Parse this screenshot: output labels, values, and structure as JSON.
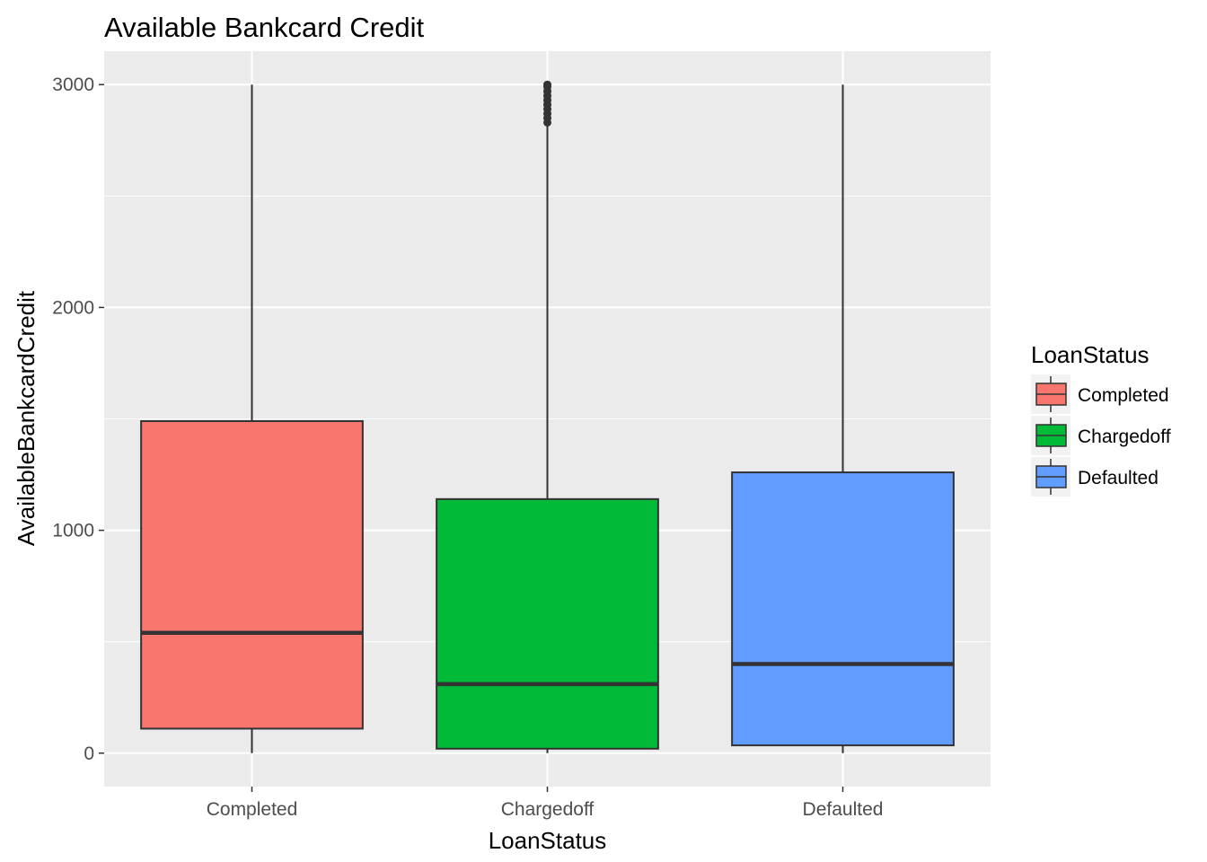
{
  "chart_data": {
    "type": "box",
    "title": "Available Bankcard Credit",
    "xlabel": "LoanStatus",
    "ylabel": "AvailableBankcardCredit",
    "categories": [
      "Completed",
      "Chargedoff",
      "Defaulted"
    ],
    "ylim": [
      -150,
      3150
    ],
    "yticks": [
      0,
      1000,
      2000,
      3000
    ],
    "grid": true,
    "legend": {
      "title": "LoanStatus",
      "position": "right",
      "entries": [
        "Completed",
        "Chargedoff",
        "Defaulted"
      ]
    },
    "series": [
      {
        "name": "Completed",
        "color": "#F8766D",
        "whisker_low": 0,
        "q1": 110,
        "median": 540,
        "q3": 1490,
        "whisker_high": 3000,
        "outliers": []
      },
      {
        "name": "Chargedoff",
        "color": "#00BA38",
        "whisker_low": 0,
        "q1": 20,
        "median": 310,
        "q3": 1140,
        "whisker_high": 2815,
        "outliers": [
          2830,
          2850,
          2870,
          2890,
          2910,
          2930,
          2950,
          2970,
          2990,
          3000
        ]
      },
      {
        "name": "Defaulted",
        "color": "#619CFF",
        "whisker_low": 0,
        "q1": 35,
        "median": 400,
        "q3": 1260,
        "whisker_high": 3000,
        "outliers": []
      }
    ]
  }
}
